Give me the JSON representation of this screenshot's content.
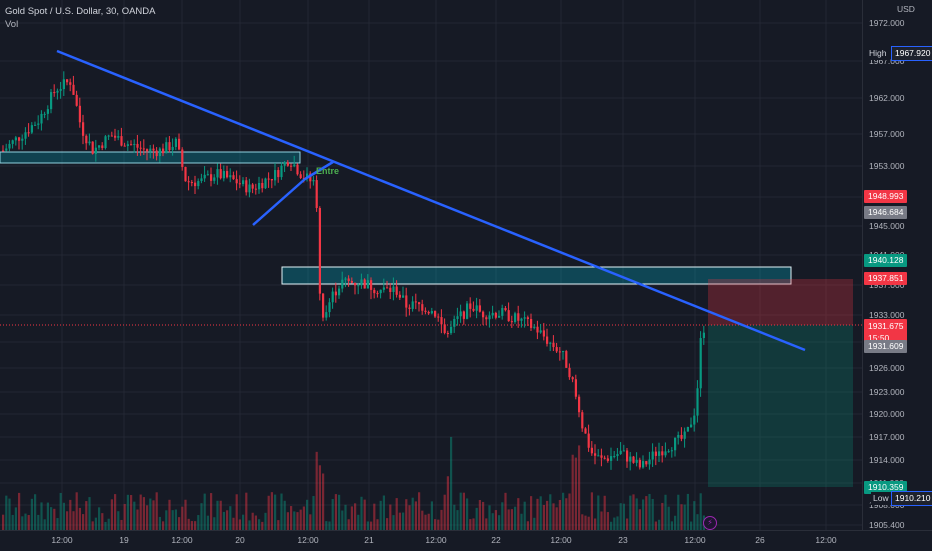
{
  "legend": {
    "title": "Gold Spot / U.S. Dollar, 30, OANDA",
    "volume_label": "Vol"
  },
  "annotations": {
    "entry_label": "Entre"
  },
  "price_axis": {
    "currency": "USD",
    "ticks": [
      "1972.000",
      "1967.000",
      "1962.000",
      "1957.000",
      "1953.000",
      "1949.000",
      "1945.000",
      "1941.000",
      "1937.000",
      "1933.000",
      "1929.000",
      "1926.000",
      "1923.000",
      "1920.000",
      "1917.000",
      "1914.000",
      "1911.000",
      "1908.000",
      "1905.400"
    ],
    "high_label": "High",
    "high_value": "1967.920",
    "low_label": "Low",
    "low_value": "1910.210",
    "tags": {
      "tag_1948": "1948.993",
      "tag_1946": "1946.684",
      "tag_1940": "1940.128",
      "tag_1937": "1937.851",
      "current_price": "1931.675",
      "countdown": "15:50",
      "tag_1931": "1931.609",
      "tag_1910": "1910.359"
    }
  },
  "time_axis": {
    "labels": [
      "12:00",
      "19",
      "12:00",
      "20",
      "12:00",
      "21",
      "12:00",
      "22",
      "12:00",
      "23",
      "12:00",
      "26",
      "12:00"
    ]
  },
  "colors": {
    "background": "#161a25",
    "bull": "#089981",
    "bear": "#f23645",
    "trendline": "#2962ff",
    "zone": "#00bcd4"
  },
  "icons": {
    "alert": "lightning-bolt-icon"
  }
}
